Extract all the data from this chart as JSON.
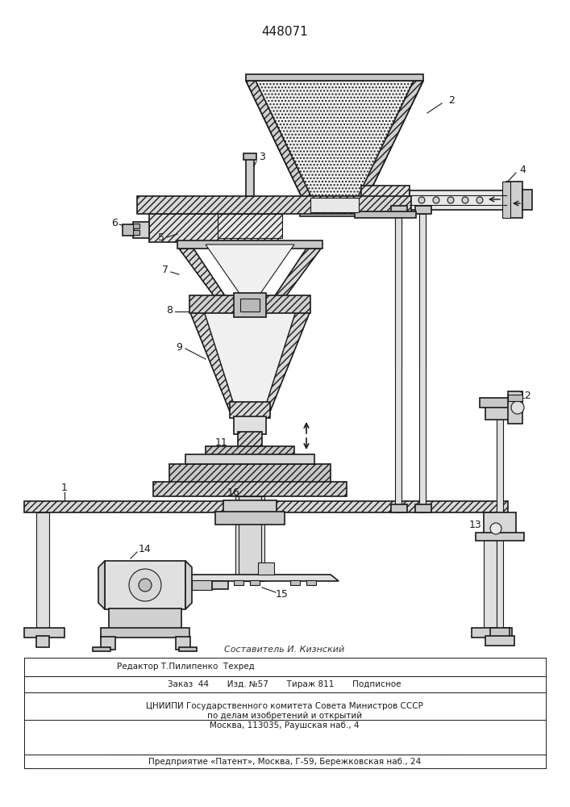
{
  "patent_number": "448071",
  "bg": "#ffffff",
  "lc": "#1a1a1a",
  "footer": [
    "Составитель И. Кизнский",
    "Редактор Т.Пилипенко  Техред",
    "Заказ  44       Изд. №57       Тираж 811       Подписное",
    "ЦНИИПИ Государственного комитета Совета Министров СССР",
    "по делам изобретений и открытий",
    "Москва, 113035, Раушская наб., 4",
    "Предприятие «Патент», Москва, Г-59, Бережковская наб., 24"
  ]
}
